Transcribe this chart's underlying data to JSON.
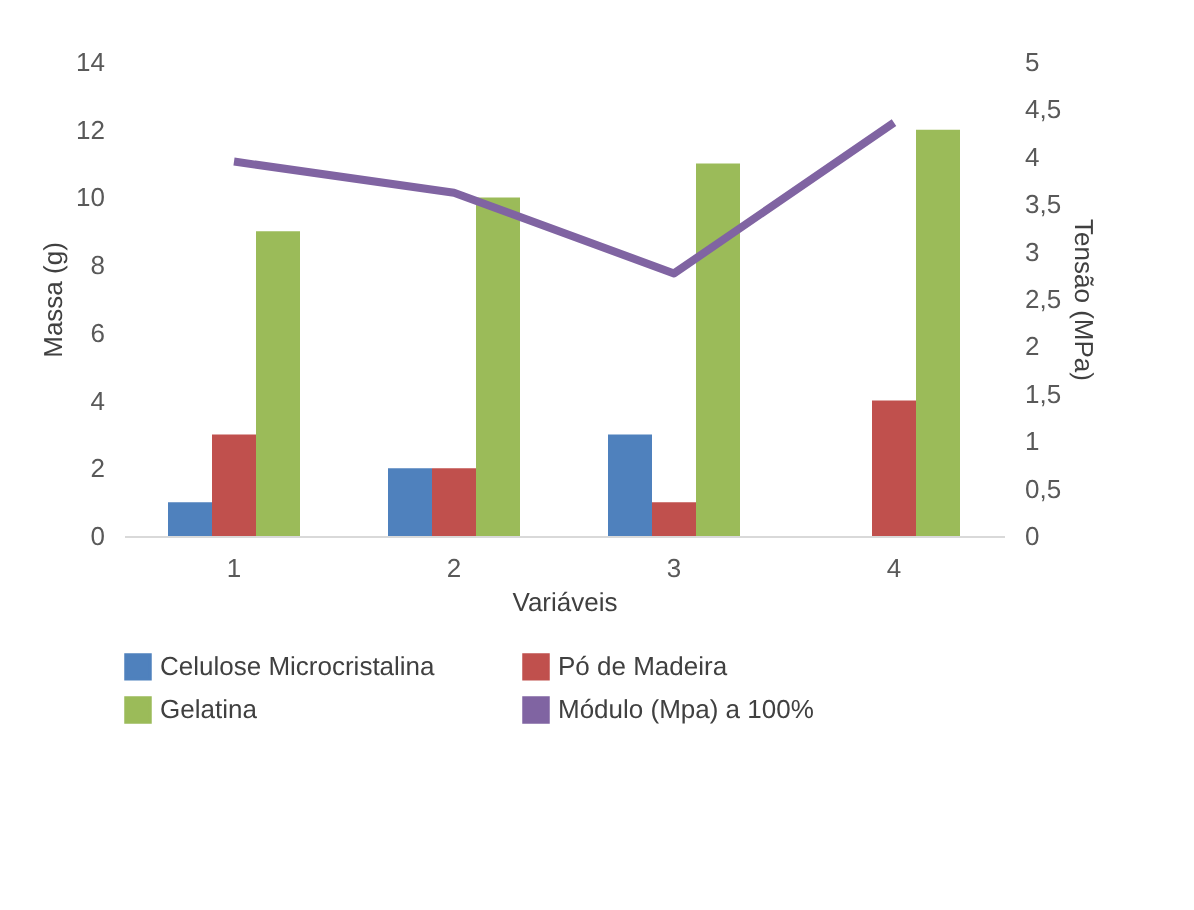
{
  "chart_data": {
    "type": "bar",
    "xlabel": "Variáveis",
    "ylabel": "Massa (g)",
    "y2label": "Tensão (MPa)",
    "categories": [
      "1",
      "2",
      "3",
      "4"
    ],
    "series": [
      {
        "name": "Celulose Microcristalina",
        "color": "#4f81bd",
        "values": [
          1,
          2,
          3,
          null
        ]
      },
      {
        "name": "Pó de Madeira",
        "color": "#c0504d",
        "values": [
          3,
          2,
          1,
          4
        ]
      },
      {
        "name": "Gelatina",
        "color": "#9bbb59",
        "values": [
          9,
          10,
          11,
          12
        ]
      },
      {
        "name": "Módulo (Mpa) a 100%",
        "color": "#8064a2",
        "type": "line",
        "axis": "y2",
        "values": [
          3.95,
          3.62,
          2.77,
          4.36
        ]
      }
    ],
    "ylim": [
      0,
      14
    ],
    "yticks": [
      0,
      2,
      4,
      6,
      8,
      10,
      12,
      14
    ],
    "y2lim": [
      0,
      5
    ],
    "y2ticks": [
      0,
      {
        "value": 0.5,
        "label": "0,5"
      },
      1,
      {
        "value": 1.5,
        "label": "1,5"
      },
      2,
      {
        "value": 2.5,
        "label": "2,5"
      },
      3,
      {
        "value": 3.5,
        "label": "3,5"
      },
      4,
      {
        "value": 4.5,
        "label": "4,5"
      },
      5
    ],
    "grid": false,
    "legend": "bottom",
    "marker": "none"
  }
}
